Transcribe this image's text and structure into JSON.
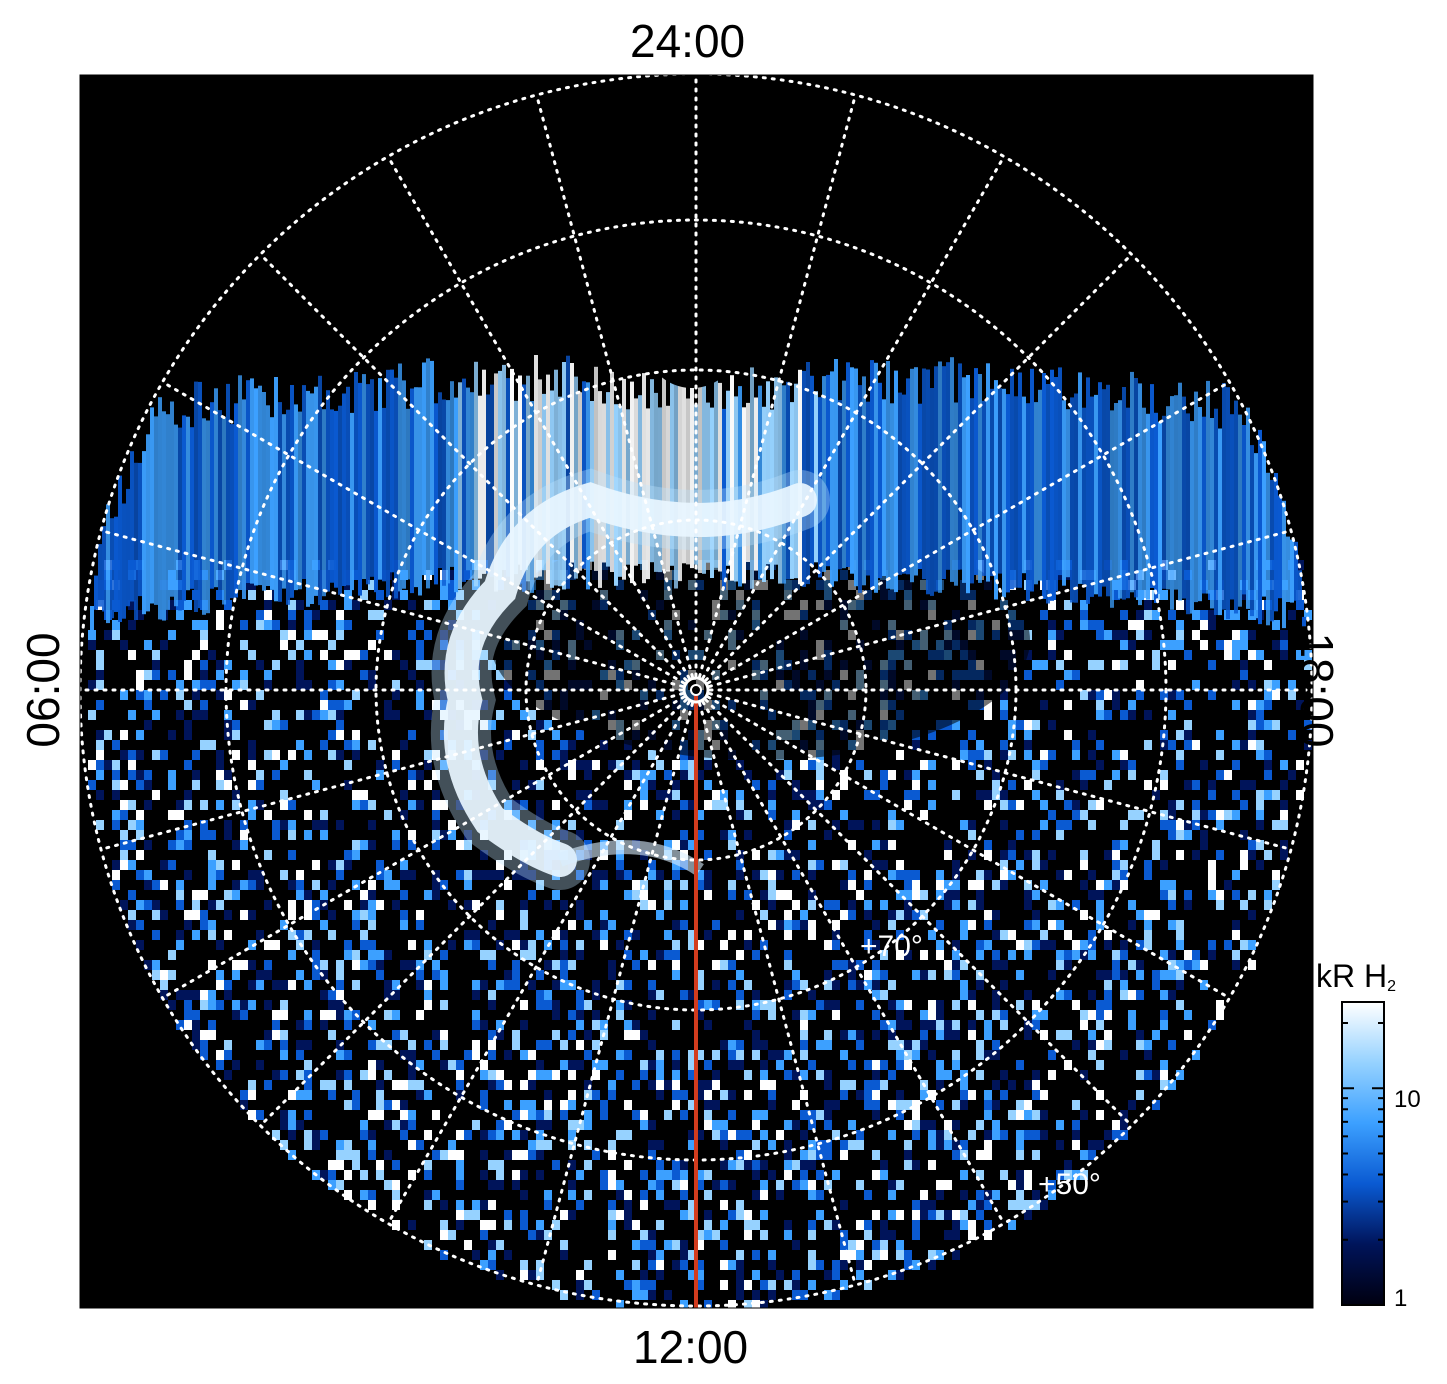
{
  "local_time_labels": {
    "top": "24:00",
    "bottom": "12:00",
    "left": "06:00",
    "right": "18:00"
  },
  "latitude_labels": {
    "inner": "+70°",
    "outer": "+50°"
  },
  "colorbar": {
    "title_main": "kR H",
    "title_sub": "2",
    "ticks": [
      "10",
      "1"
    ],
    "colors": [
      "#000010",
      "#00145a",
      "#0a5ad2",
      "#3ca0ff",
      "#96d2ff",
      "#ffffff"
    ]
  },
  "colors": {
    "background": "#000000",
    "grid": "#ffffff",
    "meridian_line": "#d23c1e"
  }
}
